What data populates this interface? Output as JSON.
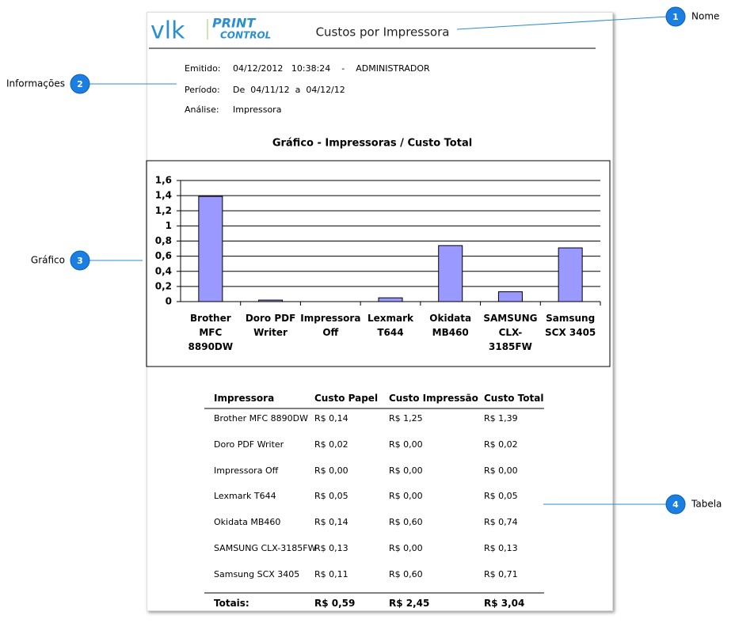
{
  "callouts": [
    {
      "number": 1,
      "label": "Nome"
    },
    {
      "number": 2,
      "label": "Informações"
    },
    {
      "number": 3,
      "label": "Gráfico"
    },
    {
      "number": 4,
      "label": "Tabela"
    }
  ],
  "header": {
    "logo": "vlk",
    "logo_top": "PRINT",
    "logo_bottom": "CONTROL",
    "title": "Custos por Impressora"
  },
  "info": [
    {
      "label": "Emitido:",
      "value": "04/12/2012   10:38:24    -    ADMINISTRADOR"
    },
    {
      "label": "Período:",
      "value": "De  04/11/12  a  04/12/12"
    },
    {
      "label": "Análise:",
      "value": "Impressora"
    }
  ],
  "chart_data": {
    "type": "bar",
    "title": "Gráfico - Impressoras / Custo Total",
    "categories": [
      "Brother MFC 8890DW",
      "Doro PDF Writer",
      "Impressora Off",
      "Lexmark T644",
      "Okidata MB460",
      "SAMSUNG CLX-3185FW",
      "Samsung SCX 3405"
    ],
    "values": [
      1.39,
      0.02,
      0,
      0.05,
      0.74,
      0.13,
      0.71
    ],
    "color": "#9999ff",
    "ylim": [
      0,
      1.6
    ],
    "yticks": [
      0,
      {
        "value": 0.2,
        "label": "0,2"
      },
      {
        "value": 0.4,
        "label": "0,4"
      },
      {
        "value": 0.6,
        "label": "0,6"
      },
      {
        "value": 0.8,
        "label": "0,8"
      },
      1,
      {
        "value": 1.2,
        "label": "1,2"
      },
      {
        "value": 1.4,
        "label": "1,4"
      },
      {
        "value": 1.6,
        "label": "1,6"
      }
    ],
    "grid": true
  },
  "table": {
    "columns": [
      "Impressora",
      "Custo Papel",
      "Custo Impressão",
      "Custo Total"
    ],
    "rows": [
      [
        "Brother MFC 8890DW",
        "R$ 0,14",
        "R$ 1,25",
        "R$ 1,39"
      ],
      [
        "Doro PDF Writer",
        "R$ 0,02",
        "R$ 0,00",
        "R$ 0,02"
      ],
      [
        "Impressora Off",
        "R$ 0,00",
        "R$ 0,00",
        "R$ 0,00"
      ],
      [
        "Lexmark T644",
        "R$ 0,05",
        "R$ 0,00",
        "R$ 0,05"
      ],
      [
        "Okidata MB460",
        "R$ 0,14",
        "R$ 0,60",
        "R$ 0,74"
      ],
      [
        "SAMSUNG CLX-3185FW",
        "R$ 0,13",
        "R$ 0,00",
        "R$ 0,13"
      ],
      [
        "Samsung SCX 3405",
        "R$ 0,11",
        "R$ 0,60",
        "R$ 0,71"
      ]
    ],
    "totals": [
      "Totais:",
      "R$ 0,59",
      "R$ 2,45",
      "R$ 3,04"
    ]
  }
}
